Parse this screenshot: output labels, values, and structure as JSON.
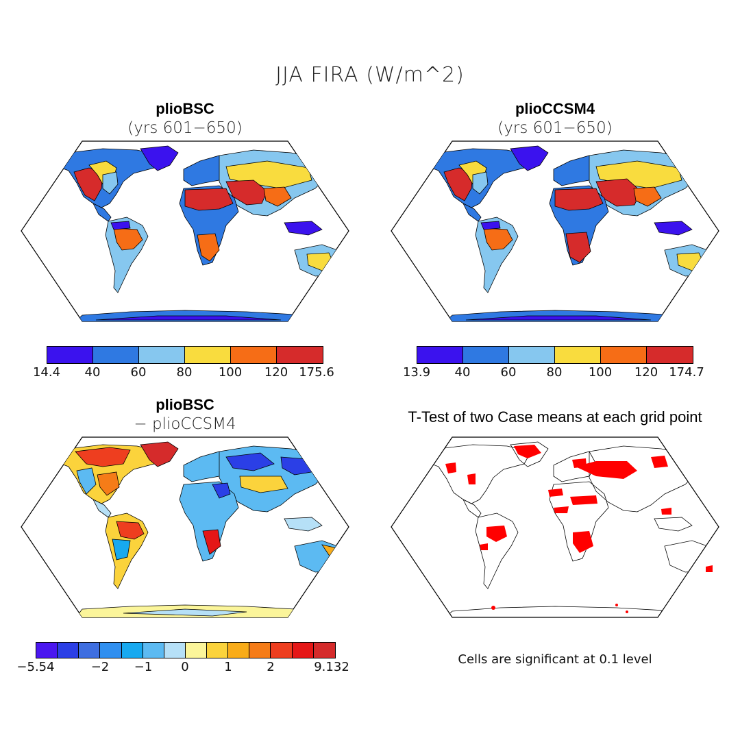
{
  "figure": {
    "title": "JJA FIRA (W/m^2)"
  },
  "panels": [
    {
      "id": "p1",
      "title": "plioBSC",
      "subtitle": "(yrs 601−650)",
      "colorbar": {
        "colors": [
          "#3b12ee",
          "#2f79e2",
          "#86c7ef",
          "#f9dc3e",
          "#f66d16",
          "#d62b2b"
        ],
        "tick_labels": [
          "14.4",
          "40",
          "60",
          "80",
          "100",
          "120",
          "175.6"
        ]
      }
    },
    {
      "id": "p2",
      "title": "plioCCSM4",
      "subtitle": "(yrs 601−650)",
      "colorbar": {
        "colors": [
          "#3b12ee",
          "#2f79e2",
          "#86c7ef",
          "#f9dc3e",
          "#f66d16",
          "#d62b2b"
        ],
        "tick_labels": [
          "13.9",
          "40",
          "60",
          "80",
          "100",
          "120",
          "174.7"
        ]
      }
    },
    {
      "id": "p3",
      "title": "plioBSC",
      "subtitle": "− plioCCSM4",
      "colorbar": {
        "colors": [
          "#4a17f0",
          "#2b3fe6",
          "#3e6ee0",
          "#2f8ff0",
          "#17a9f0",
          "#5cbaf2",
          "#b6e0f7",
          "#fbf59a",
          "#fbd33c",
          "#f9ac19",
          "#f57c18",
          "#ee3e1f",
          "#e51717",
          "#d52b2b"
        ],
        "tick_labels": [
          "−5.54",
          "−2",
          "−1",
          "0",
          "1",
          "2",
          "9.132"
        ]
      }
    },
    {
      "id": "p4",
      "title": "T-Test of two Case means at each grid point",
      "note": "Cells are significant at 0.1 level",
      "significance_color": "#ff0000"
    }
  ]
}
